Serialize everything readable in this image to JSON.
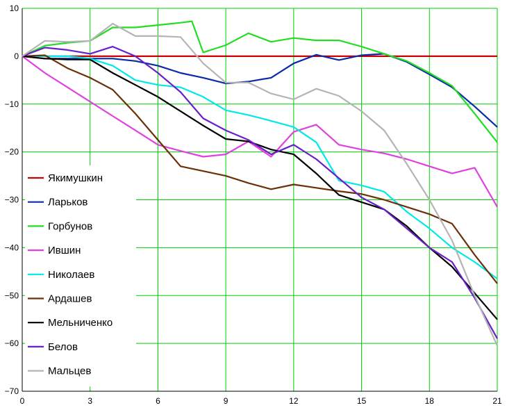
{
  "chart_data": {
    "type": "line",
    "title": "",
    "xlabel": "",
    "ylabel": "",
    "xlim": [
      0,
      21
    ],
    "ylim": [
      -70,
      10
    ],
    "xticks": [
      0,
      3,
      6,
      9,
      12,
      15,
      18,
      21
    ],
    "yticks": [
      10,
      0,
      -10,
      -20,
      -30,
      -40,
      -50,
      -60,
      -70
    ],
    "grid": true,
    "grid_color": "#00cc00",
    "legend_position": "left",
    "series": [
      {
        "name": "Якимушкин",
        "color": "#cc0000",
        "x": [
          0,
          1,
          2,
          3,
          4,
          5,
          6,
          7,
          8,
          9,
          10,
          11,
          12,
          13,
          14,
          15,
          16,
          17,
          18,
          19,
          20,
          21
        ],
        "y": [
          0,
          0,
          0,
          0,
          0,
          0,
          0,
          0,
          0,
          0,
          0,
          0,
          0,
          0,
          0,
          0,
          0,
          0,
          0,
          0,
          0,
          0
        ]
      },
      {
        "name": "Ларьков",
        "color": "#0a2aa8",
        "x": [
          0,
          1,
          2,
          3,
          4,
          5,
          6,
          7,
          8,
          9,
          10,
          11,
          12,
          13,
          14,
          15,
          16,
          17,
          18,
          19,
          20,
          21
        ],
        "y": [
          0,
          -0.5,
          -0.5,
          -0.5,
          -0.5,
          -1,
          -2,
          -3.5,
          -4.5,
          -5.7,
          -5.3,
          -4.5,
          -1.5,
          0.3,
          -0.8,
          0.2,
          0.5,
          -1.2,
          -3.8,
          -6.5,
          -10.5,
          -14.8
        ]
      },
      {
        "name": "Горбунов",
        "color": "#22dd22",
        "x": [
          0,
          1,
          2,
          3,
          4,
          5,
          6,
          7,
          7.5,
          8,
          9,
          10,
          11,
          12,
          13,
          14,
          15,
          16,
          17,
          18,
          19,
          20,
          21
        ],
        "y": [
          0,
          2.2,
          2.8,
          3.2,
          6,
          6,
          6.5,
          7,
          7.3,
          0.8,
          2.3,
          4.8,
          3,
          3.8,
          3.3,
          3.3,
          2,
          0.5,
          -1,
          -3.5,
          -6.2,
          -12,
          -18
        ]
      },
      {
        "name": "Ившин",
        "color": "#e040e0",
        "x": [
          0,
          1,
          2,
          3,
          4,
          5,
          6,
          7,
          8,
          9,
          10,
          11,
          12,
          13,
          14,
          15,
          16,
          17,
          18,
          19,
          20,
          21
        ],
        "y": [
          0,
          -3.5,
          -6.5,
          -9.5,
          -12.5,
          -15.5,
          -18.5,
          -19.8,
          -21,
          -20.5,
          -17.8,
          -21,
          -15.8,
          -14.3,
          -18.5,
          -19.5,
          -20.3,
          -21.5,
          -23,
          -24.5,
          -23.3,
          -31.5
        ]
      },
      {
        "name": "Николаев",
        "color": "#00e8e8",
        "x": [
          0,
          1,
          2,
          3,
          4,
          5,
          6,
          7,
          8,
          9,
          10,
          11,
          12,
          13,
          14,
          15,
          16,
          17,
          18,
          19,
          20,
          21
        ],
        "y": [
          0,
          0,
          0,
          -0.5,
          -2,
          -5,
          -6,
          -6.5,
          -8.5,
          -11.3,
          -12.3,
          -13.5,
          -14.8,
          -18,
          -26,
          -27,
          -28.3,
          -32.5,
          -36,
          -40,
          -43,
          -46.5
        ]
      },
      {
        "name": "Ардашев",
        "color": "#6b3008",
        "x": [
          0,
          1,
          2,
          3,
          4,
          5,
          6,
          7,
          8,
          9,
          10,
          11,
          12,
          13,
          14,
          15,
          16,
          17,
          18,
          19,
          20,
          21
        ],
        "y": [
          0,
          0.2,
          -2.5,
          -4.5,
          -7,
          -12,
          -17.5,
          -23,
          -24,
          -25,
          -26.5,
          -27.8,
          -26.8,
          -27.5,
          -28.2,
          -28.8,
          -30,
          -31.5,
          -33,
          -35,
          -41.5,
          -47.5
        ]
      },
      {
        "name": "Мельниченко",
        "color": "#000000",
        "x": [
          0,
          1,
          2,
          3,
          4,
          5,
          6,
          7,
          8,
          9,
          10,
          11,
          12,
          13,
          14,
          15,
          16,
          17,
          18,
          19,
          20,
          21
        ],
        "y": [
          0,
          -0.5,
          -0.7,
          -0.7,
          -3.5,
          -6,
          -8.5,
          -11.5,
          -14.5,
          -17.3,
          -17.8,
          -19.5,
          -20.5,
          -24.5,
          -29,
          -30.5,
          -32,
          -35.5,
          -40,
          -44,
          -49.5,
          -55
        ]
      },
      {
        "name": "Белов",
        "color": "#6a1fc8",
        "x": [
          0,
          1,
          2,
          3,
          4,
          5,
          6,
          7,
          8,
          9,
          10,
          11,
          12,
          13,
          14,
          15,
          16,
          17,
          18,
          19,
          20,
          21
        ],
        "y": [
          0,
          1.8,
          1.3,
          0.5,
          2,
          0,
          -3.5,
          -7.5,
          -13,
          -15.5,
          -17.5,
          -20.5,
          -18.5,
          -21.5,
          -25.5,
          -29.5,
          -32,
          -36,
          -40,
          -43,
          -50.5,
          -59
        ]
      },
      {
        "name": "Мальцев",
        "color": "#b4b4b4",
        "x": [
          0,
          1,
          2,
          3,
          4,
          5,
          6,
          7,
          8,
          9,
          10,
          11,
          12,
          13,
          14,
          15,
          16,
          17,
          18,
          19,
          20,
          21
        ],
        "y": [
          0,
          3.2,
          3,
          3.2,
          6.8,
          4.2,
          4.2,
          4,
          -1.5,
          -5.5,
          -5.5,
          -7.8,
          -9,
          -6.8,
          -8.3,
          -11.5,
          -15.5,
          -22.5,
          -30,
          -38.5,
          -50,
          -60.5
        ]
      }
    ]
  }
}
